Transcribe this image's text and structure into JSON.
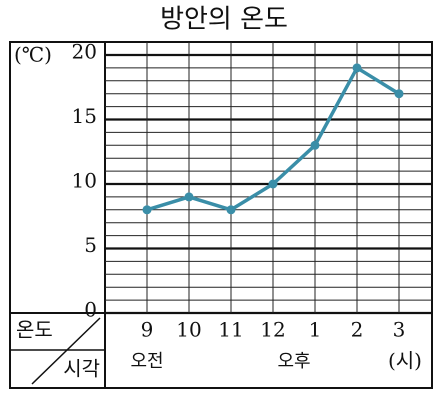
{
  "chart_data": {
    "type": "line",
    "title": "방안의 온도",
    "y_unit": "(℃)",
    "categories": [
      "9",
      "10",
      "11",
      "12",
      "1",
      "2",
      "3"
    ],
    "series": [
      {
        "name": "온도",
        "color": "#3a8ea8",
        "values": [
          8,
          9,
          8,
          10,
          13,
          19,
          17
        ]
      }
    ],
    "ylim": [
      0,
      20
    ],
    "yticks": [
      0,
      5,
      10,
      15,
      20
    ],
    "grid": true,
    "row_header_top": "온도",
    "row_header_bottom": "시각",
    "period_labels": [
      "오전",
      "오후"
    ],
    "x_unit": "(시)"
  }
}
